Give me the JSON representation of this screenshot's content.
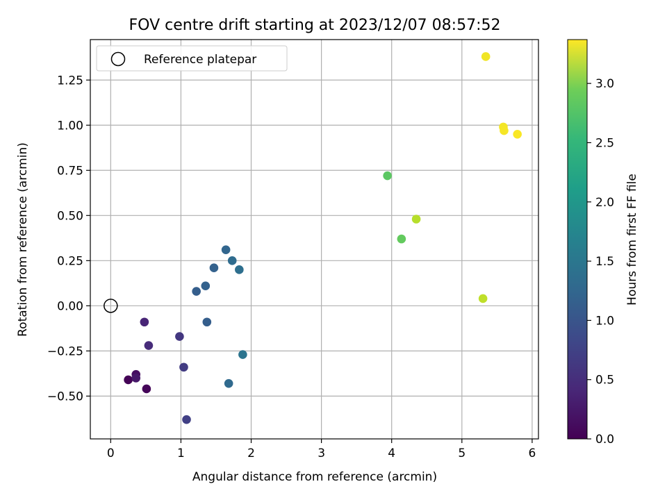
{
  "chart_data": {
    "type": "scatter",
    "title": "FOV centre drift starting at 2023/12/07 08:57:52",
    "xlabel": "Angular distance from reference (arcmin)",
    "ylabel": "Rotation from reference (arcmin)",
    "xlim": [
      -0.29,
      6.09
    ],
    "ylim": [
      -0.737,
      1.474
    ],
    "x_ticks": [
      {
        "v": 0,
        "label": "0"
      },
      {
        "v": 1,
        "label": "1"
      },
      {
        "v": 2,
        "label": "2"
      },
      {
        "v": 3,
        "label": "3"
      },
      {
        "v": 4,
        "label": "4"
      },
      {
        "v": 5,
        "label": "5"
      },
      {
        "v": 6,
        "label": "6"
      }
    ],
    "y_ticks": [
      {
        "v": -0.5,
        "label": "−0.50"
      },
      {
        "v": -0.25,
        "label": "−0.25"
      },
      {
        "v": 0,
        "label": "0.00"
      },
      {
        "v": 0.25,
        "label": "0.25"
      },
      {
        "v": 0.5,
        "label": "0.50"
      },
      {
        "v": 0.75,
        "label": "0.75"
      },
      {
        "v": 1.0,
        "label": "1.00"
      },
      {
        "v": 1.25,
        "label": "1.25"
      }
    ],
    "grid": true,
    "legend": {
      "position": "top-left",
      "entries": [
        "Reference platepar"
      ]
    },
    "reference_point": {
      "x": 0,
      "y": 0
    },
    "colorbar": {
      "label": "Hours from first FF file",
      "colormap": "viridis",
      "range": [
        0,
        3.37
      ],
      "ticks": [
        {
          "v": 0,
          "label": "0.0"
        },
        {
          "v": 0.5,
          "label": "0.5"
        },
        {
          "v": 1.0,
          "label": "1.0"
        },
        {
          "v": 1.5,
          "label": "1.5"
        },
        {
          "v": 2.0,
          "label": "2.0"
        },
        {
          "v": 2.5,
          "label": "2.5"
        },
        {
          "v": 3.0,
          "label": "3.0"
        }
      ]
    },
    "points": [
      {
        "x": 0.25,
        "y": -0.41,
        "c": 0.02
      },
      {
        "x": 0.36,
        "y": -0.38,
        "c": 0.12
      },
      {
        "x": 0.36,
        "y": -0.4,
        "c": 0.22
      },
      {
        "x": 0.51,
        "y": -0.46,
        "c": 0.05
      },
      {
        "x": 0.48,
        "y": -0.09,
        "c": 0.35
      },
      {
        "x": 0.54,
        "y": -0.22,
        "c": 0.42
      },
      {
        "x": 0.98,
        "y": -0.17,
        "c": 0.55
      },
      {
        "x": 1.04,
        "y": -0.34,
        "c": 0.6
      },
      {
        "x": 1.08,
        "y": -0.63,
        "c": 0.65
      },
      {
        "x": 1.22,
        "y": 0.08,
        "c": 1.0
      },
      {
        "x": 1.35,
        "y": 0.11,
        "c": 1.05
      },
      {
        "x": 1.37,
        "y": -0.09,
        "c": 1.0
      },
      {
        "x": 1.47,
        "y": 0.21,
        "c": 1.05
      },
      {
        "x": 1.64,
        "y": 0.31,
        "c": 1.1
      },
      {
        "x": 1.68,
        "y": -0.43,
        "c": 1.15
      },
      {
        "x": 1.73,
        "y": 0.25,
        "c": 1.18
      },
      {
        "x": 1.83,
        "y": 0.2,
        "c": 1.22
      },
      {
        "x": 1.88,
        "y": -0.27,
        "c": 1.3
      },
      {
        "x": 3.94,
        "y": 0.72,
        "c": 2.5
      },
      {
        "x": 4.14,
        "y": 0.37,
        "c": 2.55
      },
      {
        "x": 4.35,
        "y": 0.48,
        "c": 3.0
      },
      {
        "x": 5.3,
        "y": 0.04,
        "c": 3.05
      },
      {
        "x": 5.34,
        "y": 1.38,
        "c": 3.3
      },
      {
        "x": 5.59,
        "y": 0.99,
        "c": 3.32
      },
      {
        "x": 5.6,
        "y": 0.97,
        "c": 3.33
      },
      {
        "x": 5.79,
        "y": 0.95,
        "c": 3.35
      }
    ]
  }
}
